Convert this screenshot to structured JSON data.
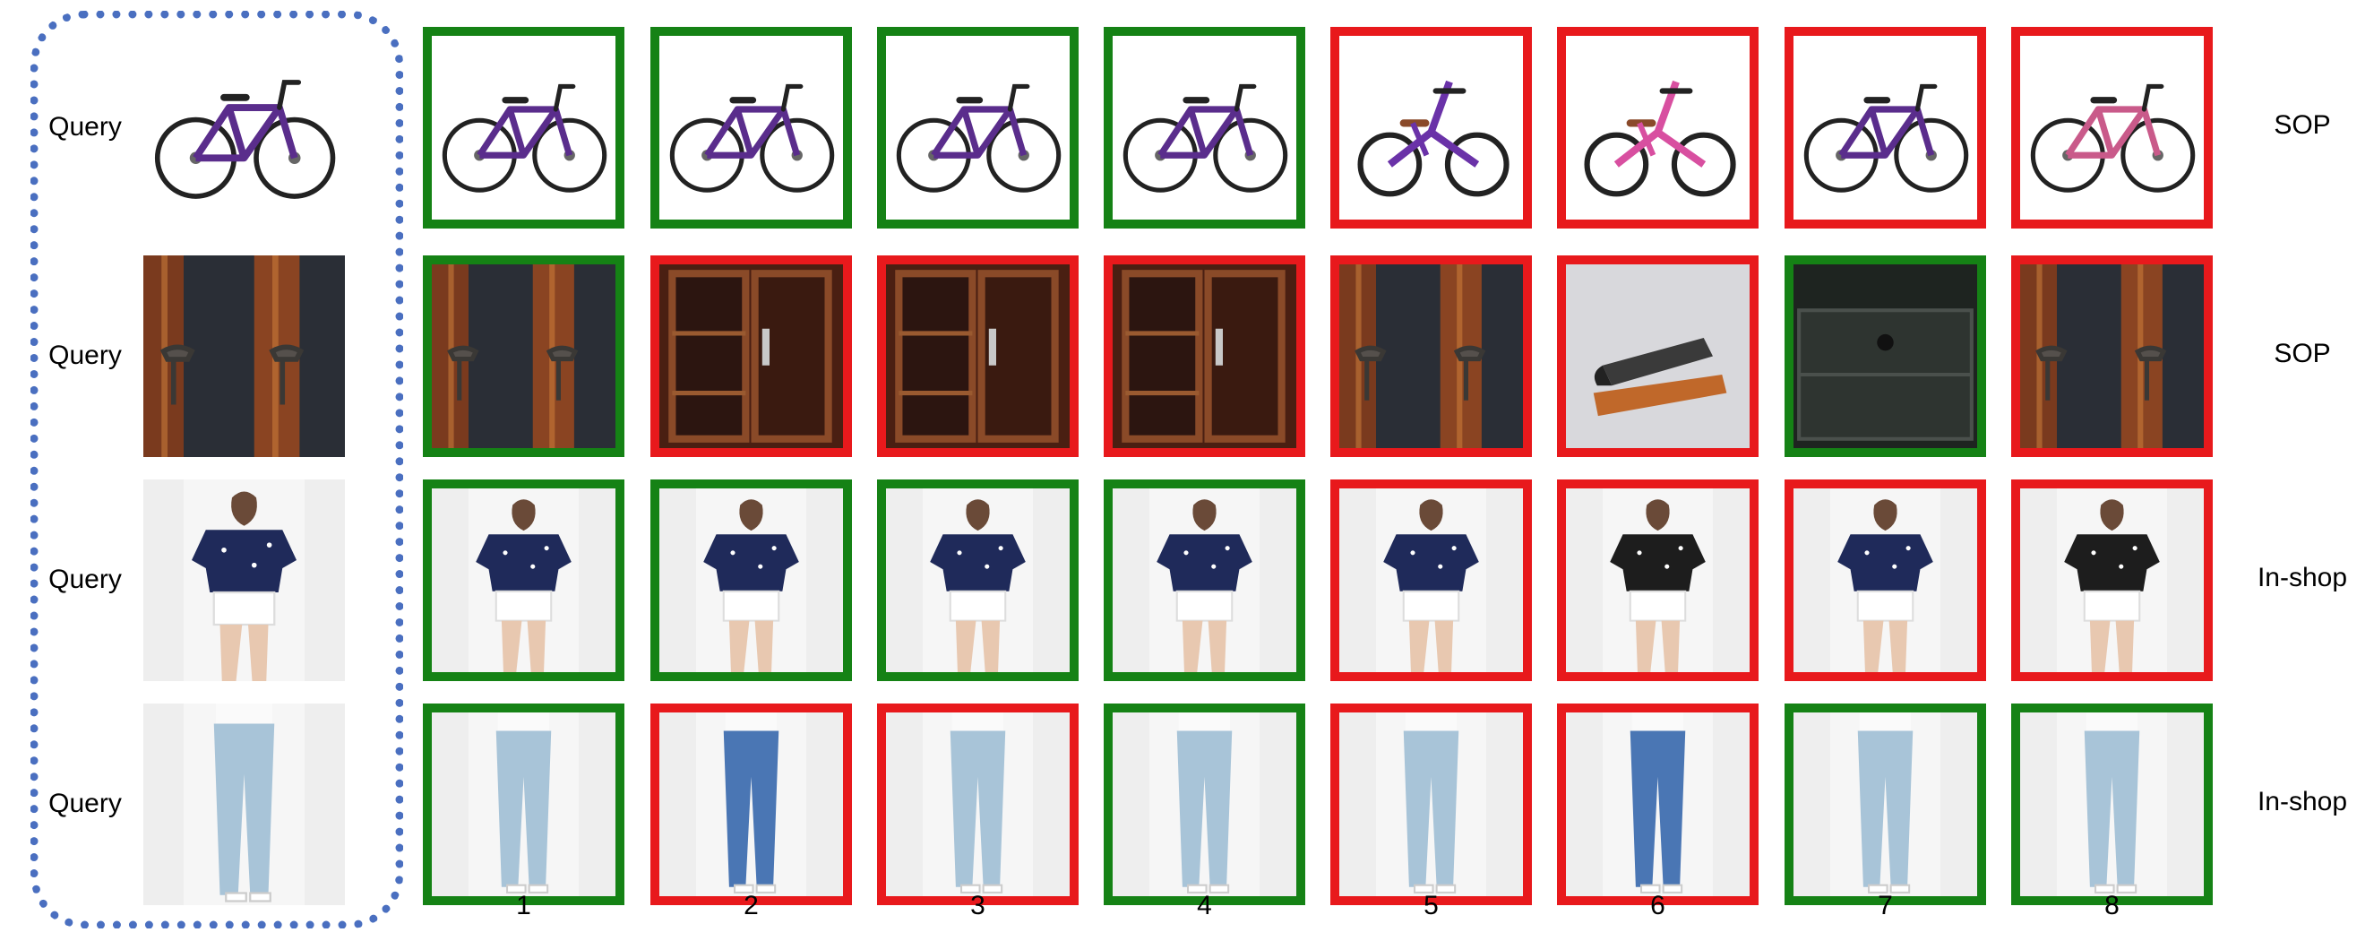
{
  "colors": {
    "correct": "#158215",
    "incorrect": "#e8191c",
    "query_border": "#4a6fc0"
  },
  "ranks": [
    "1",
    "2",
    "3",
    "4",
    "5",
    "6",
    "7",
    "8"
  ],
  "rows": [
    {
      "query_label": "Query",
      "dataset": "SOP",
      "query_icon": "bicycle-icon",
      "results": [
        {
          "correct": true,
          "icon": "bicycle-icon"
        },
        {
          "correct": true,
          "icon": "bicycle-icon"
        },
        {
          "correct": true,
          "icon": "bicycle-icon"
        },
        {
          "correct": true,
          "icon": "bicycle-icon"
        },
        {
          "correct": false,
          "icon": "folding-bicycle-icon"
        },
        {
          "correct": false,
          "icon": "folding-bicycle-icon"
        },
        {
          "correct": false,
          "icon": "bicycle-icon"
        },
        {
          "correct": false,
          "icon": "bicycle-icon"
        }
      ]
    },
    {
      "query_label": "Query",
      "dataset": "SOP",
      "query_icon": "cabinet-handle-icon",
      "results": [
        {
          "correct": true,
          "icon": "cabinet-handle-icon"
        },
        {
          "correct": false,
          "icon": "cabinet-icon"
        },
        {
          "correct": false,
          "icon": "cabinet-icon"
        },
        {
          "correct": false,
          "icon": "cabinet-icon"
        },
        {
          "correct": false,
          "icon": "cabinet-handle-icon"
        },
        {
          "correct": false,
          "icon": "stapler-icon"
        },
        {
          "correct": true,
          "icon": "drawer-icon"
        },
        {
          "correct": false,
          "icon": "cabinet-handle-icon"
        }
      ]
    },
    {
      "query_label": "Query",
      "dataset": "In-shop",
      "query_icon": "blouse-icon",
      "results": [
        {
          "correct": true,
          "icon": "blouse-icon"
        },
        {
          "correct": true,
          "icon": "blouse-icon"
        },
        {
          "correct": true,
          "icon": "blouse-icon"
        },
        {
          "correct": true,
          "icon": "blouse-icon"
        },
        {
          "correct": false,
          "icon": "blouse-icon"
        },
        {
          "correct": false,
          "icon": "blouse-icon"
        },
        {
          "correct": false,
          "icon": "blouse-icon"
        },
        {
          "correct": false,
          "icon": "blouse-icon"
        }
      ]
    },
    {
      "query_label": "Query",
      "dataset": "In-shop",
      "query_icon": "jeans-icon",
      "results": [
        {
          "correct": true,
          "icon": "jeans-icon"
        },
        {
          "correct": false,
          "icon": "jeans-icon"
        },
        {
          "correct": false,
          "icon": "jeans-icon"
        },
        {
          "correct": true,
          "icon": "jeans-icon"
        },
        {
          "correct": false,
          "icon": "jeans-icon"
        },
        {
          "correct": false,
          "icon": "jeans-icon"
        },
        {
          "correct": true,
          "icon": "jeans-icon"
        },
        {
          "correct": true,
          "icon": "jeans-icon"
        }
      ]
    }
  ]
}
